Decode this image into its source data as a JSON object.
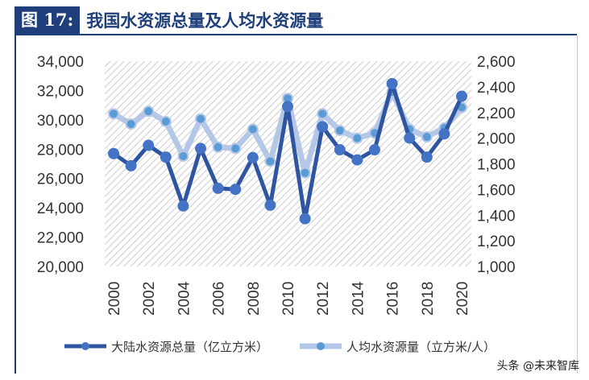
{
  "header": {
    "figure_label": "图 17:",
    "title": "我国水资源总量及人均水资源量"
  },
  "watermark": "头条 @未来智库",
  "colors": {
    "series1": "#2f55a0",
    "series1_marker": "#4472c4",
    "series2": "#b4c7e7",
    "series2_marker": "#5b9bd5",
    "hatch": "#d9d9d9",
    "title": "#1f3f7a"
  },
  "chart_data": {
    "type": "line",
    "title": "",
    "x": [
      2000,
      2001,
      2002,
      2003,
      2004,
      2005,
      2006,
      2007,
      2008,
      2009,
      2010,
      2011,
      2012,
      2013,
      2014,
      2015,
      2016,
      2017,
      2018,
      2019,
      2020
    ],
    "x_tick_labels": [
      "2000",
      "2002",
      "2004",
      "2006",
      "2008",
      "2010",
      "2012",
      "2014",
      "2016",
      "2018",
      "2020"
    ],
    "y_left": {
      "range": [
        20000,
        34000
      ],
      "ticks": [
        "20,000",
        "22,000",
        "24,000",
        "26,000",
        "28,000",
        "30,000",
        "32,000",
        "34,000"
      ]
    },
    "y_right": {
      "range": [
        1000,
        2600
      ],
      "ticks": [
        "1,000",
        "1,200",
        "1,400",
        "1,600",
        "1,800",
        "2,000",
        "2,200",
        "2,400",
        "2,600"
      ]
    },
    "grid": false,
    "background": "diagonal-hatch",
    "legend_placement": "bottom",
    "series": [
      {
        "name": "大陆水资源总量（亿立方米）",
        "axis": "left",
        "values": [
          27700,
          26870,
          28260,
          27460,
          24130,
          28050,
          25330,
          25260,
          27430,
          24180,
          30910,
          23260,
          29530,
          27960,
          27270,
          27960,
          32470,
          28760,
          27460,
          29040,
          31610
        ]
      },
      {
        "name": "人均水资源量（立方米/人）",
        "axis": "right",
        "values": [
          2190,
          2110,
          2210,
          2130,
          1860,
          2150,
          1930,
          1920,
          2070,
          1820,
          2310,
          1730,
          2190,
          2060,
          2000,
          2040,
          2360,
          2070,
          2010,
          2080,
          2240
        ]
      }
    ]
  }
}
